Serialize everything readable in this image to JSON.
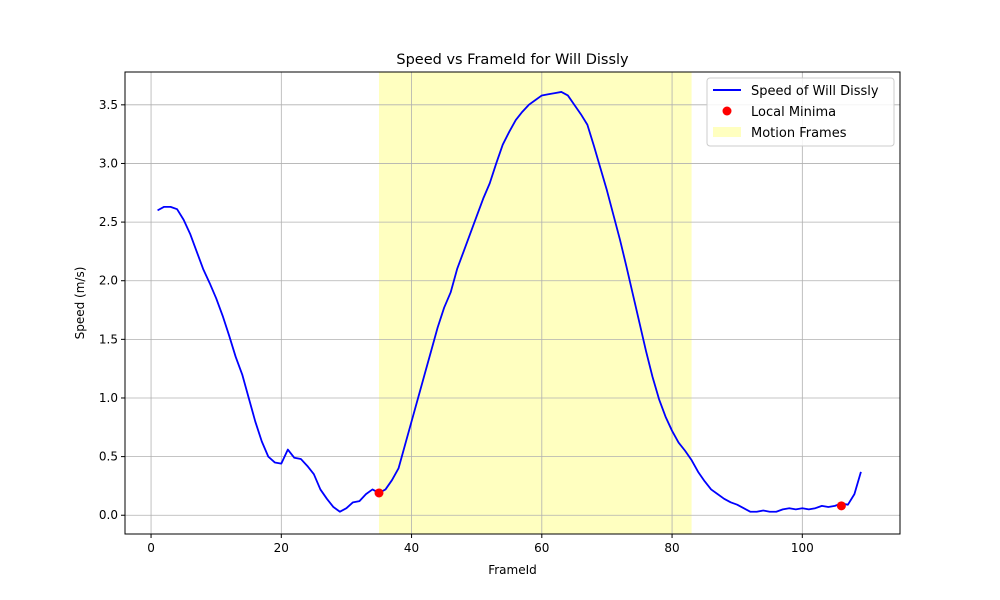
{
  "chart_data": {
    "type": "line",
    "title": "Speed vs FrameId for Will Dissly",
    "xlabel": "FrameId",
    "ylabel": "Speed (m/s)",
    "xlim": [
      -4,
      115
    ],
    "ylim": [
      -0.16,
      3.78
    ],
    "xticks": [
      0,
      20,
      40,
      60,
      80,
      100
    ],
    "xtick_labels": [
      "0",
      "20",
      "40",
      "60",
      "80",
      "100"
    ],
    "yticks": [
      0.0,
      0.5,
      1.0,
      1.5,
      2.0,
      2.5,
      3.0,
      3.5
    ],
    "ytick_labels": [
      "0.0",
      "0.5",
      "1.0",
      "1.5",
      "2.0",
      "2.5",
      "3.0",
      "3.5"
    ],
    "grid": true,
    "legend_position": "top-right",
    "series": [
      {
        "name": "Speed of Will Dissly",
        "color": "#0000ff",
        "x": [
          1,
          2,
          3,
          4,
          5,
          6,
          7,
          8,
          9,
          10,
          11,
          12,
          13,
          14,
          15,
          16,
          17,
          18,
          19,
          20,
          21,
          22,
          23,
          24,
          25,
          26,
          27,
          28,
          29,
          30,
          31,
          32,
          33,
          34,
          35,
          36,
          37,
          38,
          39,
          40,
          41,
          42,
          43,
          44,
          45,
          46,
          47,
          48,
          49,
          50,
          51,
          52,
          53,
          54,
          55,
          56,
          57,
          58,
          59,
          60,
          61,
          62,
          63,
          64,
          65,
          66,
          67,
          68,
          69,
          70,
          71,
          72,
          73,
          74,
          75,
          76,
          77,
          78,
          79,
          80,
          81,
          82,
          83,
          84,
          85,
          86,
          87,
          88,
          89,
          90,
          91,
          92,
          93,
          94,
          95,
          96,
          97,
          98,
          99,
          100,
          101,
          102,
          103,
          104,
          105,
          106,
          107,
          108,
          109
        ],
        "values": [
          2.6,
          2.63,
          2.63,
          2.61,
          2.52,
          2.4,
          2.25,
          2.1,
          1.98,
          1.85,
          1.7,
          1.53,
          1.35,
          1.2,
          1.0,
          0.8,
          0.63,
          0.5,
          0.45,
          0.44,
          0.56,
          0.49,
          0.48,
          0.42,
          0.35,
          0.22,
          0.14,
          0.07,
          0.03,
          0.06,
          0.11,
          0.12,
          0.18,
          0.22,
          0.19,
          0.22,
          0.3,
          0.4,
          0.6,
          0.8,
          1.0,
          1.2,
          1.4,
          1.6,
          1.77,
          1.9,
          2.1,
          2.25,
          2.4,
          2.55,
          2.7,
          2.83,
          3.0,
          3.16,
          3.27,
          3.37,
          3.44,
          3.5,
          3.54,
          3.58,
          3.59,
          3.6,
          3.61,
          3.58,
          3.5,
          3.42,
          3.33,
          3.15,
          2.96,
          2.77,
          2.56,
          2.35,
          2.12,
          1.88,
          1.64,
          1.4,
          1.18,
          0.99,
          0.84,
          0.72,
          0.62,
          0.55,
          0.47,
          0.37,
          0.29,
          0.22,
          0.18,
          0.14,
          0.11,
          0.09,
          0.06,
          0.03,
          0.03,
          0.04,
          0.03,
          0.03,
          0.05,
          0.06,
          0.05,
          0.06,
          0.05,
          0.06,
          0.08,
          0.07,
          0.08,
          0.1,
          0.09,
          0.18,
          0.37
        ]
      },
      {
        "name": "Local Minima",
        "type": "scatter",
        "color": "#ff0000",
        "x": [
          35,
          106
        ],
        "values": [
          0.19,
          0.08
        ]
      }
    ],
    "spans": [
      {
        "name": "Motion Frames",
        "x_start": 35,
        "x_end": 83,
        "color": "#ffffc0"
      }
    ]
  }
}
